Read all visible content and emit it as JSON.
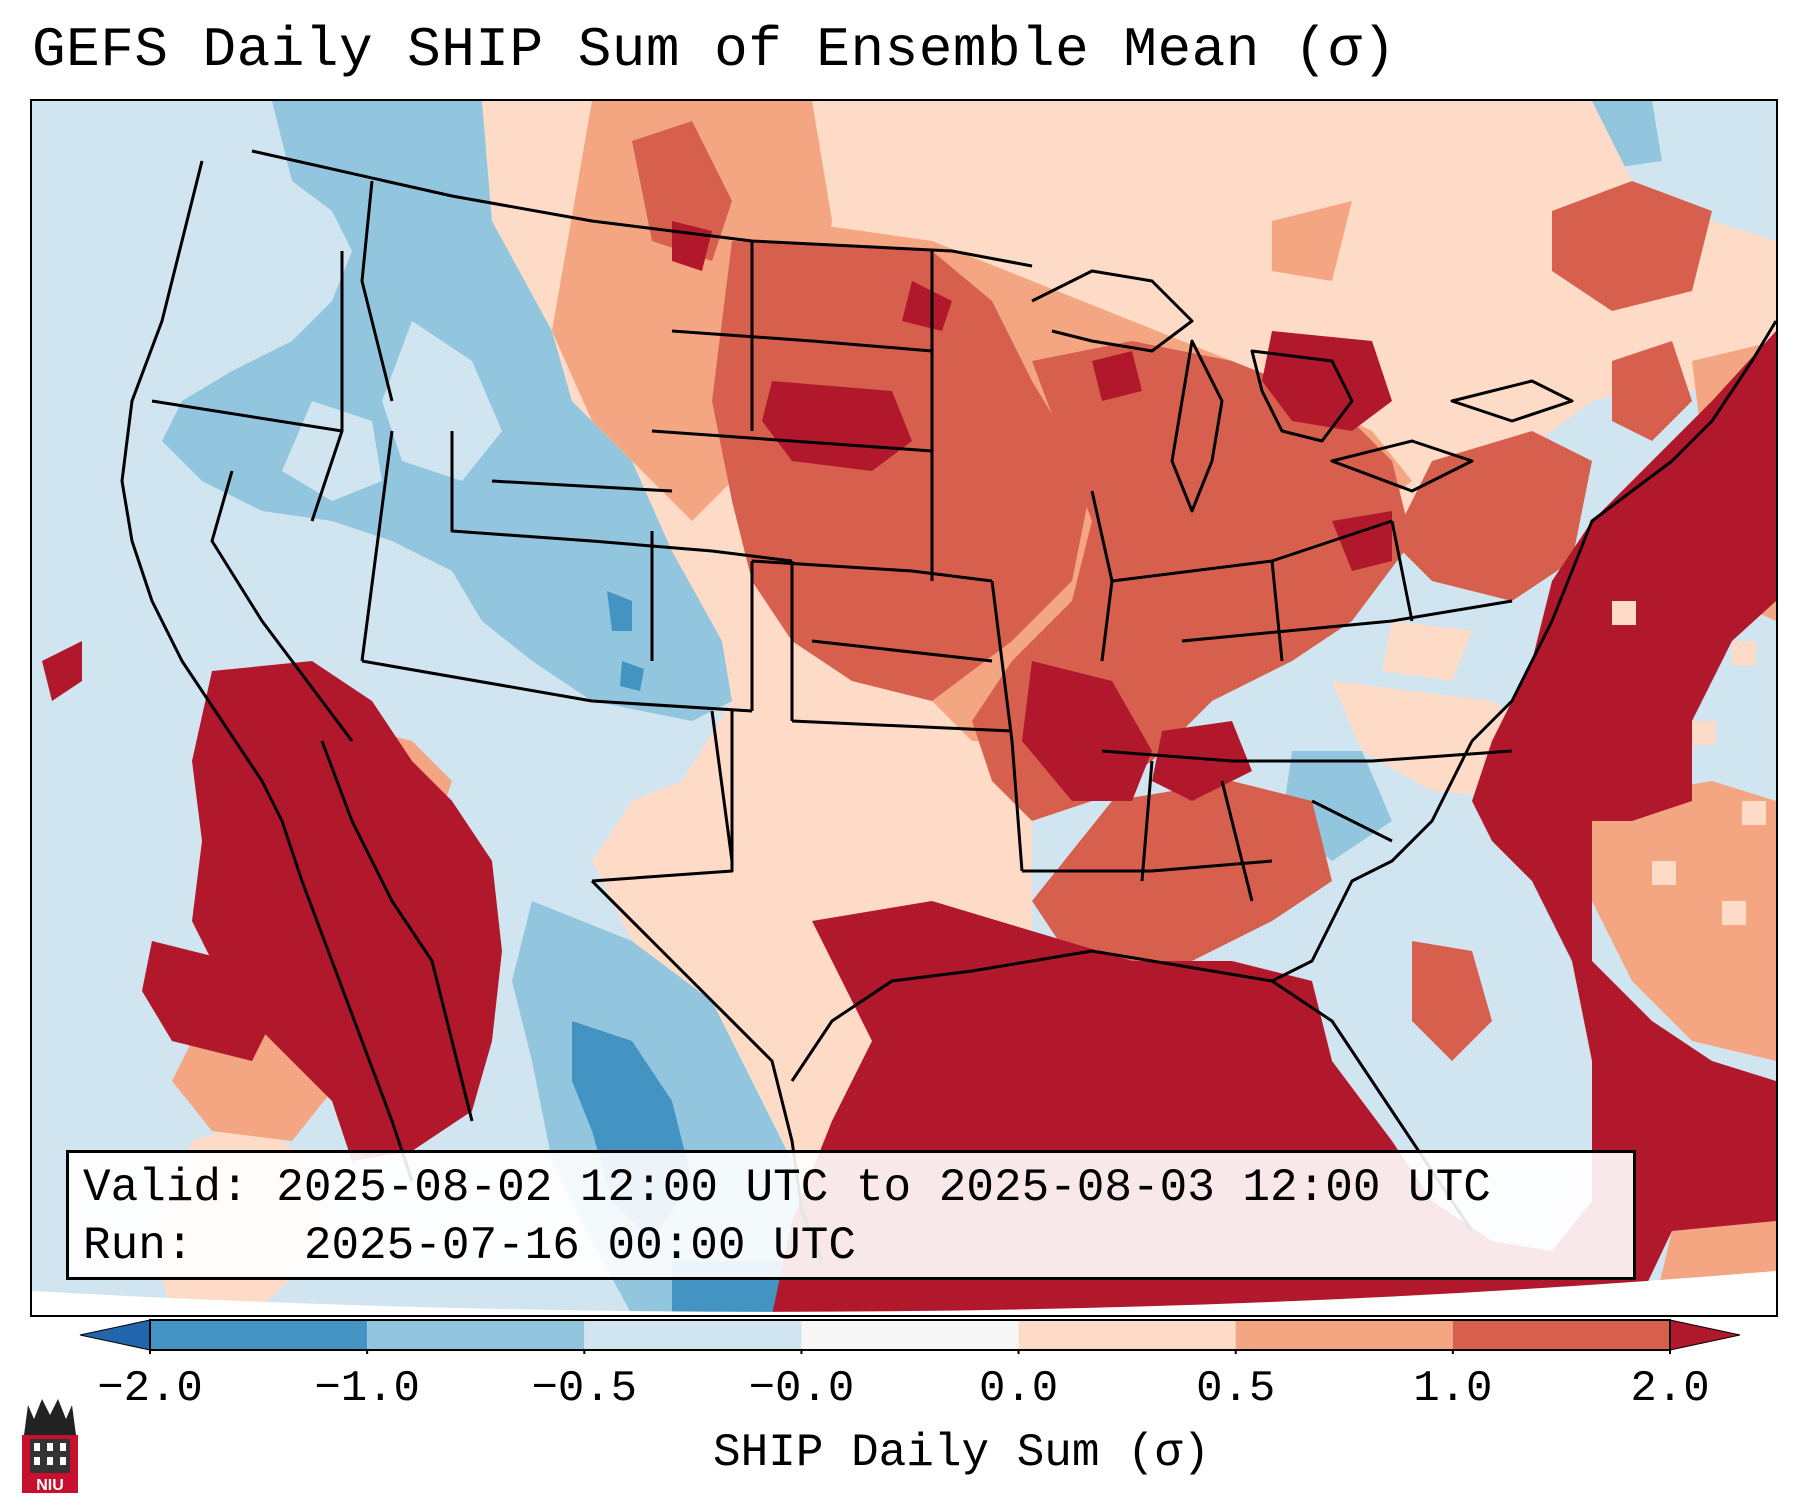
{
  "title": "GEFS Daily SHIP Sum of Ensemble Mean (σ)",
  "info": {
    "valid_label": "Valid:",
    "valid_value": "2025-08-02 12:00 UTC to 2025-08-03 12:00 UTC",
    "run_label": "Run:",
    "run_value": "2025-07-16 00:00 UTC"
  },
  "colorbar": {
    "label": "SHIP Daily Sum (σ)",
    "ticks": [
      "−2.0",
      "−1.0",
      "−0.5",
      "−0.0",
      "0.0",
      "0.5",
      "1.0",
      "2.0"
    ],
    "bins": [
      {
        "range": "< -2.0",
        "color": "#2166ac"
      },
      {
        "range": "-2.0 to -1.0",
        "color": "#4393c3"
      },
      {
        "range": "-1.0 to -0.5",
        "color": "#92c5de"
      },
      {
        "range": "-0.5 to -0.0",
        "color": "#d1e5f0"
      },
      {
        "range": "-0.0 to 0.0",
        "color": "#f7f7f7"
      },
      {
        "range": "0.0 to 0.5",
        "color": "#fddbc7"
      },
      {
        "range": "0.5 to 1.0",
        "color": "#f4a582"
      },
      {
        "range": "1.0 to 2.0",
        "color": "#d6604d"
      },
      {
        "range": "> 2.0",
        "color": "#b2182b"
      }
    ]
  },
  "logo": {
    "text": "NIU",
    "icon": "niu-building-icon",
    "color": "#c8102e"
  }
}
